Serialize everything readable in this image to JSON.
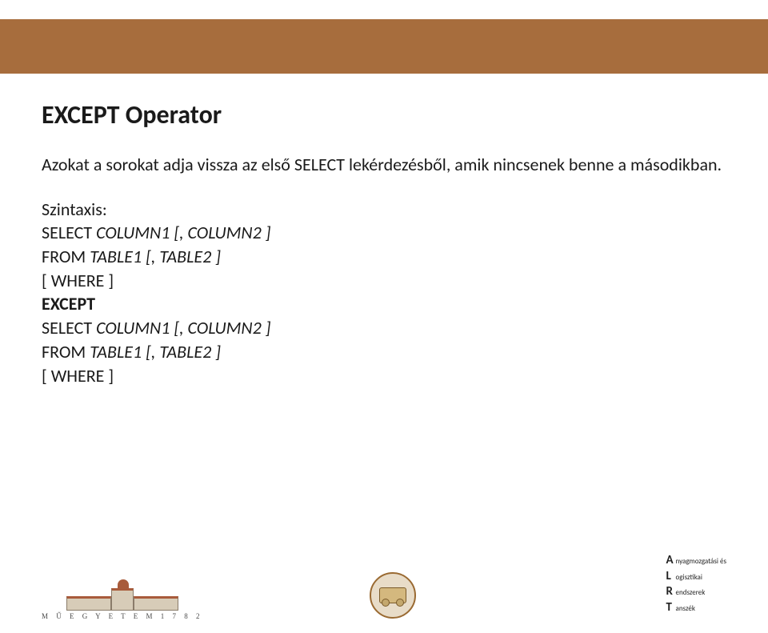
{
  "colors": {
    "top_bar": "#a76d3d",
    "text": "#1a1a1a"
  },
  "title": "EXCEPT Operator",
  "description": "Azokat a sorokat adja vissza az első SELECT lekérdezésből, amik nincsenek benne a másodikban.",
  "syntax_label": "Szintaxis:",
  "code": {
    "line1_a": "SELECT ",
    "line1_b": "COLUMN1 [, COLUMN2 ]",
    "line2_a": "FROM ",
    "line2_b": "TABLE1 [, TABLE2 ]",
    "line3": "[ WHERE ]",
    "line4": "EXCEPT",
    "line5_a": "SELECT ",
    "line5_b": "COLUMN1 [, COLUMN2 ]",
    "line6_a": "FROM ",
    "line6_b": "TABLE1 [, TABLE2 ]",
    "line7": "[ WHERE ]"
  },
  "footer": {
    "uni_text": "M Ű E G Y E T E M   1 7 8 2",
    "alrt": {
      "a_big": "A",
      "a_rest": "nyagmozgatási és",
      "l_big": "L",
      "l_rest": "ogisztikai",
      "r_big": "R",
      "r_rest": "endszerek",
      "t_big": "T",
      "t_rest": "anszék"
    }
  }
}
